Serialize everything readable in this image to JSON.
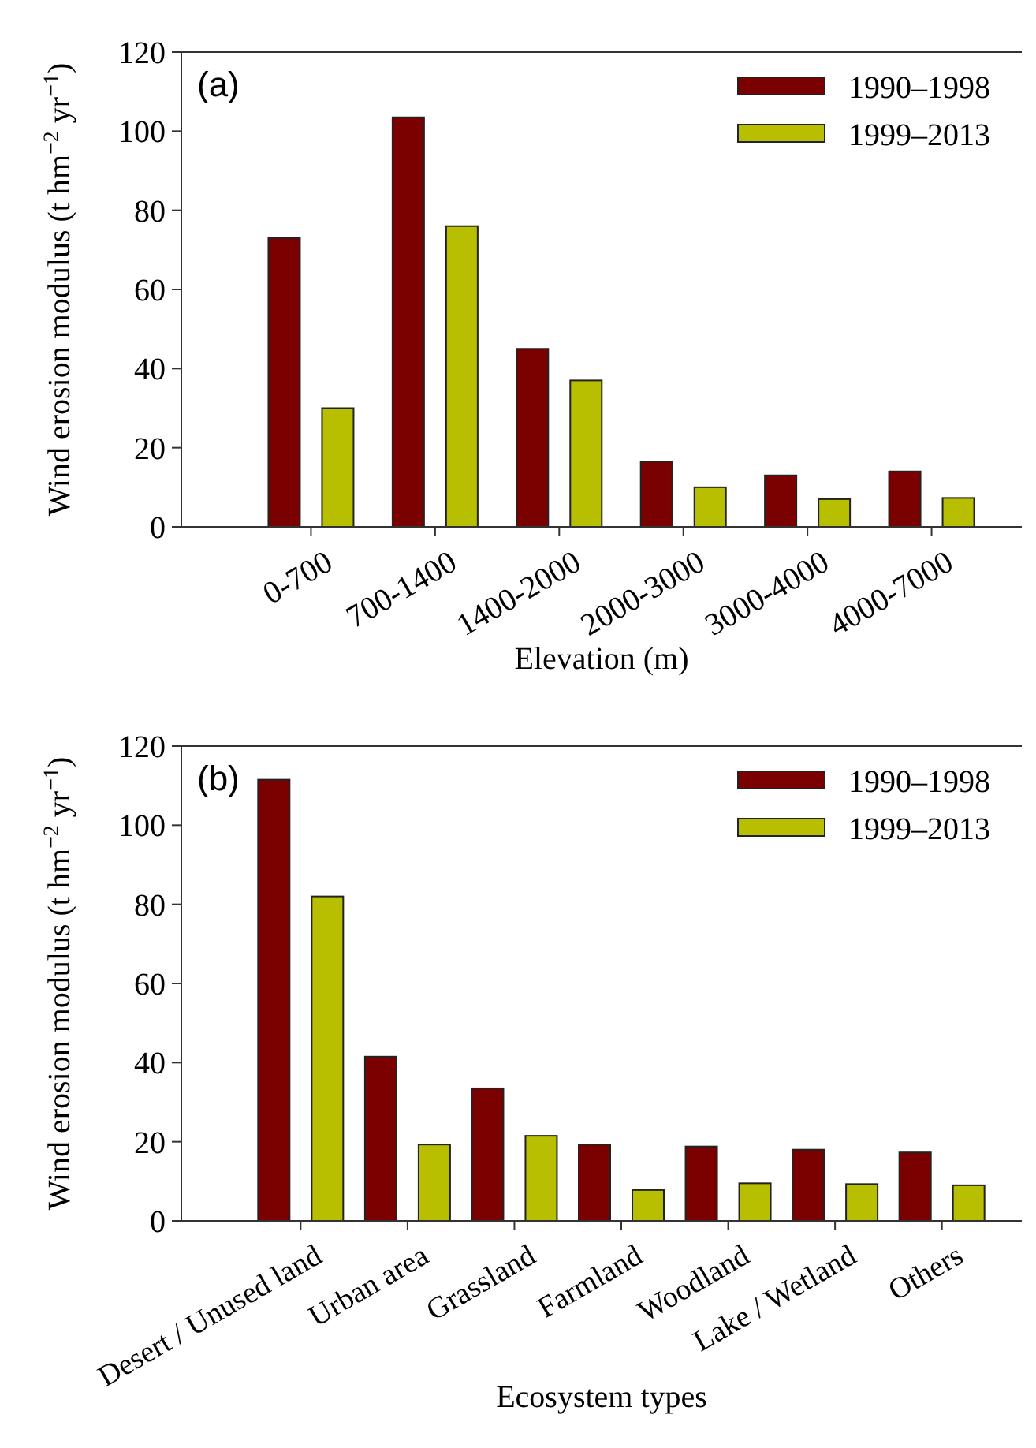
{
  "chart_data": [
    {
      "type": "bar",
      "xlabel": "Elevation (m)",
      "ylabel": "Wind erosion modulus (t hm$^{−2}$ yr$^{−1}$)",
      "annotations": [
        "(a)"
      ],
      "categories": [
        "0-700",
        "700-1400",
        "1400-2000",
        "2000-3000",
        "3000-4000",
        "4000-7000"
      ],
      "series": [
        {
          "name": "1990–1998",
          "color": "#7b0000",
          "values": [
            73,
            103.5,
            45,
            16.5,
            13,
            14
          ]
        },
        {
          "name": "1999–2013",
          "color": "#b8bf00",
          "values": [
            30,
            76,
            37,
            10,
            7,
            7.3
          ]
        }
      ],
      "ylim": [
        0,
        120
      ],
      "yticks": [
        0,
        20,
        40,
        60,
        80,
        100,
        120
      ],
      "legend": "top right",
      "grid": false
    },
    {
      "type": "bar",
      "xlabel": "Ecosystem types",
      "ylabel": "Wind erosion modulus (t hm$^{−2}$ yr$^{−1}$)",
      "annotations": [
        "(b)"
      ],
      "categories": [
        "Desert / Unused land",
        "Urban area",
        "Grassland",
        "Farmland",
        "Woodland",
        "Lake / Wetland",
        "Others"
      ],
      "series": [
        {
          "name": "1990–1998",
          "color": "#7b0000",
          "values": [
            111.5,
            41.5,
            33.5,
            19.3,
            18.8,
            18,
            17.3
          ]
        },
        {
          "name": "1999–2013",
          "color": "#b8bf00",
          "values": [
            82,
            19.3,
            21.5,
            7.8,
            9.5,
            9.3,
            9
          ]
        }
      ],
      "ylim": [
        0,
        120
      ],
      "yticks": [
        0,
        20,
        40,
        60,
        80,
        100,
        120
      ],
      "legend": "top right",
      "grid": false
    }
  ]
}
